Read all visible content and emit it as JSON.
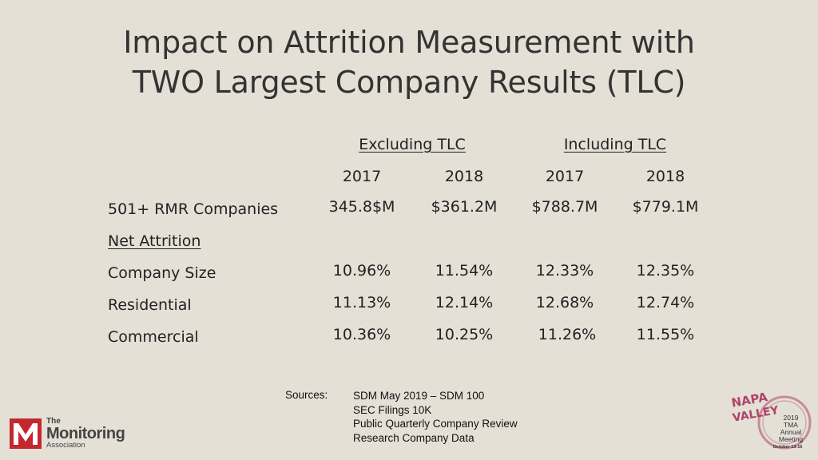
{
  "title": {
    "line1": "Impact on Attrition Measurement with",
    "line2": "TWO Largest Company Results (TLC)"
  },
  "table": {
    "groups": [
      "Excluding TLC",
      "Including TLC"
    ],
    "years": [
      "2017",
      "2018",
      "2017",
      "2018"
    ],
    "rows": [
      {
        "label": "501+ RMR Companies",
        "values": [
          "345.8$M",
          "$361.2M",
          "$788.7M",
          "$779.1M"
        ]
      },
      {
        "label": "Net Attrition",
        "values": []
      },
      {
        "label": "Company Size",
        "values": [
          "10.96%",
          "11.54%",
          "12.33%",
          "12.35%"
        ]
      },
      {
        "label": "Residential",
        "values": [
          "11.13%",
          "12.14%",
          "12.68%",
          "12.74%"
        ]
      },
      {
        "label": "Commercial",
        "values": [
          "10.36%",
          "10.25%",
          "11.26%",
          "11.55%"
        ]
      }
    ]
  },
  "sources": {
    "label": "Sources:",
    "items": [
      "SDM May 2019 – SDM 100",
      "SEC Filings 10K",
      "Public Quarterly Company Review",
      "Research Company Data"
    ]
  },
  "logos": {
    "tma": {
      "the": "The",
      "name": "Monitoring",
      "assoc": "Association",
      "color": "#c3282e"
    },
    "napa": {
      "top": "NAPA",
      "bottom": "VALLEY",
      "year": "2019",
      "org": "TMA",
      "l1": "Annual",
      "l2": "Meeting",
      "dates": "October 13-16",
      "color": "#b0436a"
    }
  }
}
